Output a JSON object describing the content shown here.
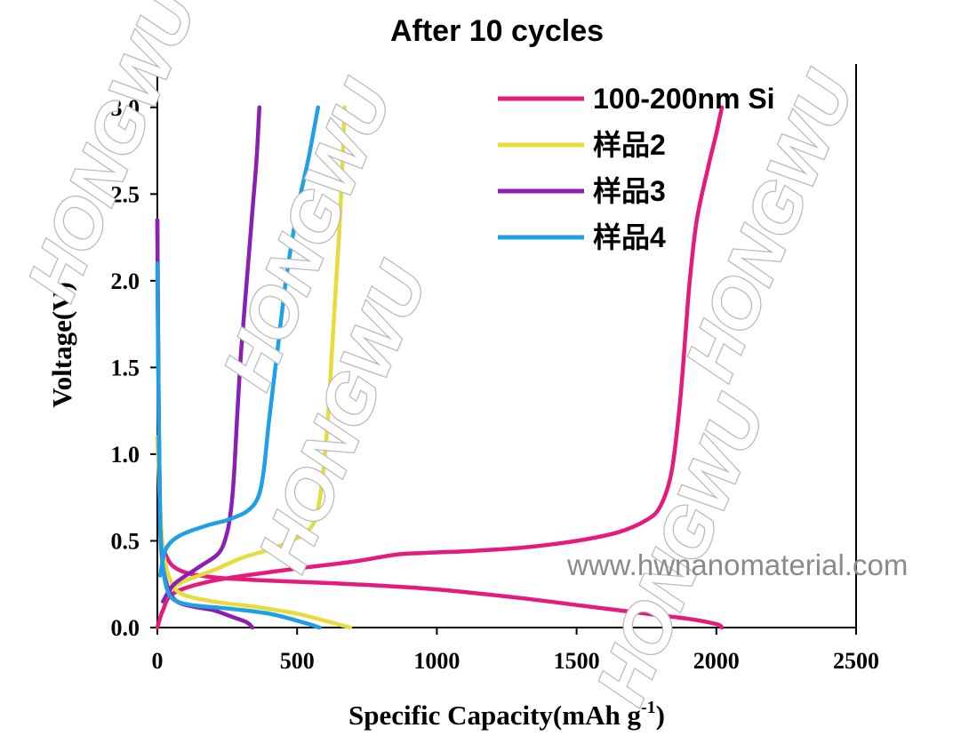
{
  "chart_data": {
    "type": "line",
    "title": "After 10 cycles",
    "xlabel": "Specific Capacity(mAh g",
    "xlabel_sup": "-1",
    "xlabel_end": ")",
    "ylabel": "Voltage(V)",
    "xlim": [
      0,
      2500
    ],
    "ylim": [
      0,
      3.25
    ],
    "x_ticks": [
      "0",
      "500",
      "1000",
      "1500",
      "2000",
      "2500"
    ],
    "y_ticks": [
      "0.0",
      "0.5",
      "1.0",
      "1.5",
      "2.0",
      "2.5",
      "3.0"
    ],
    "legend_position": "top-right",
    "grid": false,
    "series": [
      {
        "name": "100-200nm Si",
        "color": "#e6197d",
        "discharge": [
          [
            0,
            2.35
          ],
          [
            5,
            1.2
          ],
          [
            12,
            0.6
          ],
          [
            30,
            0.42
          ],
          [
            80,
            0.33
          ],
          [
            200,
            0.29
          ],
          [
            400,
            0.27
          ],
          [
            700,
            0.25
          ],
          [
            1000,
            0.22
          ],
          [
            1300,
            0.17
          ],
          [
            1550,
            0.12
          ],
          [
            1750,
            0.08
          ],
          [
            1900,
            0.05
          ],
          [
            2000,
            0.02
          ],
          [
            2020,
            0.0
          ]
        ],
        "charge": [
          [
            0,
            0.0
          ],
          [
            20,
            0.1
          ],
          [
            60,
            0.2
          ],
          [
            200,
            0.27
          ],
          [
            450,
            0.33
          ],
          [
            700,
            0.38
          ],
          [
            850,
            0.42
          ],
          [
            950,
            0.43
          ],
          [
            1100,
            0.44
          ],
          [
            1300,
            0.46
          ],
          [
            1500,
            0.5
          ],
          [
            1650,
            0.55
          ],
          [
            1750,
            0.62
          ],
          [
            1800,
            0.7
          ],
          [
            1840,
            0.9
          ],
          [
            1870,
            1.3
          ],
          [
            1890,
            1.7
          ],
          [
            1905,
            2.0
          ],
          [
            1930,
            2.35
          ],
          [
            1970,
            2.65
          ],
          [
            2000,
            2.85
          ],
          [
            2020,
            3.0
          ]
        ]
      },
      {
        "name": "样品2",
        "color": "#e6dc3c",
        "discharge": [
          [
            0,
            1.1
          ],
          [
            10,
            0.7
          ],
          [
            20,
            0.45
          ],
          [
            40,
            0.3
          ],
          [
            80,
            0.2
          ],
          [
            200,
            0.15
          ],
          [
            350,
            0.12
          ],
          [
            500,
            0.08
          ],
          [
            620,
            0.03
          ],
          [
            690,
            0.0
          ]
        ],
        "charge": [
          [
            20,
            0.15
          ],
          [
            50,
            0.22
          ],
          [
            100,
            0.27
          ],
          [
            200,
            0.33
          ],
          [
            300,
            0.4
          ],
          [
            400,
            0.45
          ],
          [
            480,
            0.5
          ],
          [
            540,
            0.56
          ],
          [
            570,
            0.65
          ],
          [
            590,
            0.85
          ],
          [
            610,
            1.2
          ],
          [
            625,
            1.6
          ],
          [
            640,
            2.0
          ],
          [
            655,
            2.4
          ],
          [
            670,
            3.0
          ]
        ]
      },
      {
        "name": "样品3",
        "color": "#8c1eb4",
        "discharge": [
          [
            0,
            2.35
          ],
          [
            5,
            1.2
          ],
          [
            10,
            0.6
          ],
          [
            20,
            0.35
          ],
          [
            40,
            0.22
          ],
          [
            70,
            0.15
          ],
          [
            130,
            0.12
          ],
          [
            200,
            0.1
          ],
          [
            270,
            0.06
          ],
          [
            320,
            0.03
          ],
          [
            340,
            0.0
          ]
        ],
        "charge": [
          [
            20,
            0.15
          ],
          [
            60,
            0.25
          ],
          [
            150,
            0.35
          ],
          [
            220,
            0.43
          ],
          [
            250,
            0.55
          ],
          [
            265,
            0.7
          ],
          [
            275,
            0.9
          ],
          [
            285,
            1.2
          ],
          [
            300,
            1.6
          ],
          [
            320,
            2.0
          ],
          [
            340,
            2.4
          ],
          [
            355,
            2.7
          ],
          [
            365,
            3.0
          ]
        ]
      },
      {
        "name": "样品4",
        "color": "#1ea0e6",
        "discharge": [
          [
            0,
            2.1
          ],
          [
            5,
            1.2
          ],
          [
            10,
            0.6
          ],
          [
            20,
            0.35
          ],
          [
            35,
            0.22
          ],
          [
            60,
            0.16
          ],
          [
            120,
            0.13
          ],
          [
            250,
            0.11
          ],
          [
            400,
            0.08
          ],
          [
            520,
            0.03
          ],
          [
            580,
            0.0
          ]
        ],
        "charge": [
          [
            10,
            0.3
          ],
          [
            30,
            0.45
          ],
          [
            80,
            0.53
          ],
          [
            180,
            0.59
          ],
          [
            250,
            0.62
          ],
          [
            320,
            0.67
          ],
          [
            360,
            0.75
          ],
          [
            380,
            0.9
          ],
          [
            400,
            1.2
          ],
          [
            430,
            1.6
          ],
          [
            460,
            2.0
          ],
          [
            500,
            2.4
          ],
          [
            540,
            2.7
          ],
          [
            575,
            3.0
          ]
        ]
      }
    ]
  },
  "watermark": {
    "brand": "HONGWU",
    "url": "www.hwnanomaterial.com"
  }
}
